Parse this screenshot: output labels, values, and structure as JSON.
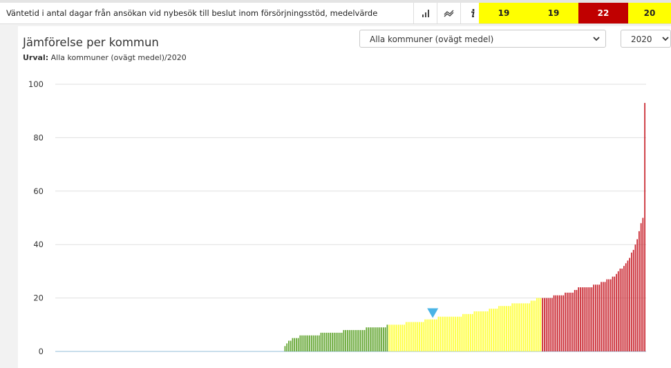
{
  "header": {
    "title": "Väntetid i antal dagar från ansökan vid nybesök till beslut inom försörjningsstöd, medelvärde",
    "icons": [
      "bar-chart-icon",
      "trend-icon",
      "info-icon"
    ],
    "scores": [
      {
        "value": "19",
        "color": "#ffff00"
      },
      {
        "value": "19",
        "color": "#ffff00"
      },
      {
        "value": "22",
        "color": "#c00000"
      },
      {
        "value": "20",
        "color": "#ffff00"
      }
    ]
  },
  "panel": {
    "title": "Jämförelse per kommun",
    "subtitle_label": "Urval:",
    "subtitle_value": "Alla kommuner (ovägt medel)/2020"
  },
  "filters": {
    "municipality": "Alla kommuner (ovägt medel)",
    "year": "2020"
  },
  "colors": {
    "green": "#5da229",
    "yellow": "#ffff33",
    "red": "#c8202a",
    "marker": "#4ab4e6",
    "grid": "#dfdfdf"
  },
  "chart_data": {
    "type": "bar",
    "title": "",
    "xlabel": "",
    "ylabel": "",
    "ylim": [
      0,
      100
    ],
    "yticks": [
      0,
      20,
      40,
      60,
      80,
      100
    ],
    "grid": true,
    "marker_index": 199,
    "values": [
      0,
      0,
      0,
      0,
      0,
      0,
      0,
      0,
      0,
      0,
      0,
      0,
      0,
      0,
      0,
      0,
      0,
      0,
      0,
      0,
      0,
      0,
      0,
      0,
      0,
      0,
      0,
      0,
      0,
      0,
      0,
      0,
      0,
      0,
      0,
      0,
      0,
      0,
      0,
      0,
      0,
      0,
      0,
      0,
      0,
      0,
      0,
      0,
      0,
      0,
      0,
      0,
      0,
      0,
      0,
      0,
      0,
      0,
      0,
      0,
      0,
      0,
      0,
      0,
      0,
      0,
      0,
      0,
      0,
      0,
      0,
      0,
      0,
      0,
      0,
      0,
      0,
      0,
      0,
      0,
      0,
      0,
      0,
      0,
      0,
      0,
      0,
      0,
      0,
      0,
      0,
      0,
      0,
      0,
      0,
      0,
      0,
      0,
      0,
      0,
      0,
      0,
      0,
      0,
      0,
      0,
      0,
      0,
      0,
      0,
      0,
      0,
      0,
      0,
      0,
      0,
      0,
      0,
      0,
      0,
      0,
      2,
      3,
      4,
      4,
      5,
      5,
      5,
      5,
      6,
      6,
      6,
      6,
      6,
      6,
      6,
      6,
      6,
      6,
      6,
      7,
      7,
      7,
      7,
      7,
      7,
      7,
      7,
      7,
      7,
      7,
      7,
      8,
      8,
      8,
      8,
      8,
      8,
      8,
      8,
      8,
      8,
      8,
      8,
      9,
      9,
      9,
      9,
      9,
      9,
      9,
      9,
      9,
      9,
      9,
      10,
      10,
      10,
      10,
      10,
      10,
      10,
      10,
      10,
      10,
      11,
      11,
      11,
      11,
      11,
      11,
      11,
      11,
      11,
      11,
      12,
      12,
      12,
      12,
      12,
      12,
      12,
      13,
      13,
      13,
      13,
      13,
      13,
      13,
      13,
      13,
      13,
      13,
      13,
      13,
      14,
      14,
      14,
      14,
      14,
      14,
      15,
      15,
      15,
      15,
      15,
      15,
      15,
      15,
      16,
      16,
      16,
      16,
      16,
      17,
      17,
      17,
      17,
      17,
      17,
      17,
      18,
      18,
      18,
      18,
      18,
      18,
      18,
      18,
      18,
      18,
      19,
      19,
      19,
      20,
      20,
      20,
      20,
      20,
      20,
      20,
      20,
      20,
      21,
      21,
      21,
      21,
      21,
      21,
      22,
      22,
      22,
      22,
      22,
      23,
      23,
      24,
      24,
      24,
      24,
      24,
      24,
      24,
      24,
      25,
      25,
      25,
      25,
      26,
      26,
      26,
      27,
      27,
      27,
      28,
      28,
      29,
      30,
      31,
      31,
      32,
      33,
      34,
      35,
      37,
      38,
      40,
      42,
      45,
      48,
      50,
      93
    ],
    "colors": [
      "gray",
      "gray",
      "gray",
      "gray",
      "gray",
      "gray",
      "gray",
      "gray",
      "gray",
      "gray",
      "gray",
      "gray",
      "gray",
      "gray",
      "gray",
      "gray",
      "gray",
      "gray",
      "gray",
      "gray",
      "gray",
      "gray",
      "gray",
      "gray",
      "gray",
      "gray",
      "gray",
      "gray",
      "gray",
      "gray",
      "gray",
      "gray",
      "gray",
      "gray",
      "gray",
      "gray",
      "gray",
      "gray",
      "gray",
      "gray",
      "gray",
      "gray",
      "gray",
      "gray",
      "gray",
      "gray",
      "gray",
      "gray",
      "gray",
      "gray",
      "gray",
      "gray",
      "gray",
      "gray",
      "gray",
      "gray",
      "gray",
      "gray",
      "gray",
      "gray",
      "gray",
      "gray",
      "gray",
      "gray",
      "gray",
      "gray",
      "gray",
      "gray",
      "gray",
      "gray",
      "gray",
      "gray",
      "gray",
      "gray",
      "gray",
      "gray",
      "gray",
      "gray",
      "gray",
      "gray",
      "gray",
      "gray",
      "gray",
      "gray",
      "gray",
      "gray",
      "gray",
      "gray",
      "gray",
      "gray",
      "gray",
      "gray",
      "gray",
      "gray",
      "gray",
      "gray",
      "gray",
      "gray",
      "gray",
      "gray",
      "gray",
      "gray",
      "gray",
      "gray",
      "gray",
      "gray",
      "gray",
      "gray",
      "gray",
      "gray",
      "gray",
      "gray",
      "gray",
      "gray",
      "gray",
      "gray",
      "gray",
      "gray",
      "gray",
      "gray",
      "gray",
      "green",
      "green",
      "green",
      "green",
      "green",
      "green",
      "green",
      "green",
      "green",
      "green",
      "green",
      "green",
      "green",
      "green",
      "green",
      "green",
      "green",
      "green",
      "green",
      "green",
      "green",
      "green",
      "green",
      "green",
      "green",
      "green",
      "green",
      "green",
      "green",
      "green",
      "green",
      "green",
      "green",
      "green",
      "green",
      "green",
      "green",
      "green",
      "green",
      "green",
      "green",
      "green",
      "green",
      "green",
      "green",
      "green",
      "green",
      "green",
      "green",
      "green",
      "green",
      "green",
      "green",
      "green",
      "green",
      "yellow",
      "yellow",
      "yellow",
      "yellow",
      "yellow",
      "yellow",
      "yellow",
      "yellow",
      "yellow",
      "yellow",
      "yellow",
      "yellow",
      "yellow",
      "yellow",
      "yellow",
      "yellow",
      "yellow",
      "yellow",
      "yellow",
      "yellow",
      "yellow",
      "yellow",
      "yellow",
      "yellow",
      "yellow",
      "yellow",
      "yellow",
      "yellow",
      "yellow",
      "yellow",
      "yellow",
      "yellow",
      "yellow",
      "yellow",
      "yellow",
      "yellow",
      "yellow",
      "yellow",
      "yellow",
      "yellow",
      "yellow",
      "yellow",
      "yellow",
      "yellow",
      "yellow",
      "yellow",
      "yellow",
      "yellow",
      "yellow",
      "yellow",
      "yellow",
      "yellow",
      "yellow",
      "yellow",
      "yellow",
      "yellow",
      "yellow",
      "yellow",
      "yellow",
      "yellow",
      "yellow",
      "yellow",
      "yellow",
      "yellow",
      "yellow",
      "yellow",
      "yellow",
      "yellow",
      "yellow",
      "yellow",
      "yellow",
      "yellow",
      "yellow",
      "yellow",
      "yellow",
      "yellow",
      "yellow",
      "yellow",
      "yellow",
      "yellow",
      "yellow",
      "red",
      "red",
      "red",
      "red",
      "red",
      "red",
      "red",
      "red",
      "red",
      "red",
      "red",
      "red",
      "red",
      "red",
      "red",
      "red",
      "red",
      "red",
      "red",
      "red",
      "red",
      "red",
      "red",
      "red",
      "red",
      "red",
      "red",
      "red",
      "red",
      "red",
      "red",
      "red",
      "red",
      "red",
      "red",
      "red",
      "red",
      "red",
      "red",
      "red",
      "red",
      "red",
      "red",
      "red",
      "red",
      "red",
      "red",
      "red",
      "red",
      "red",
      "red",
      "red",
      "red",
      "red",
      "red"
    ]
  }
}
